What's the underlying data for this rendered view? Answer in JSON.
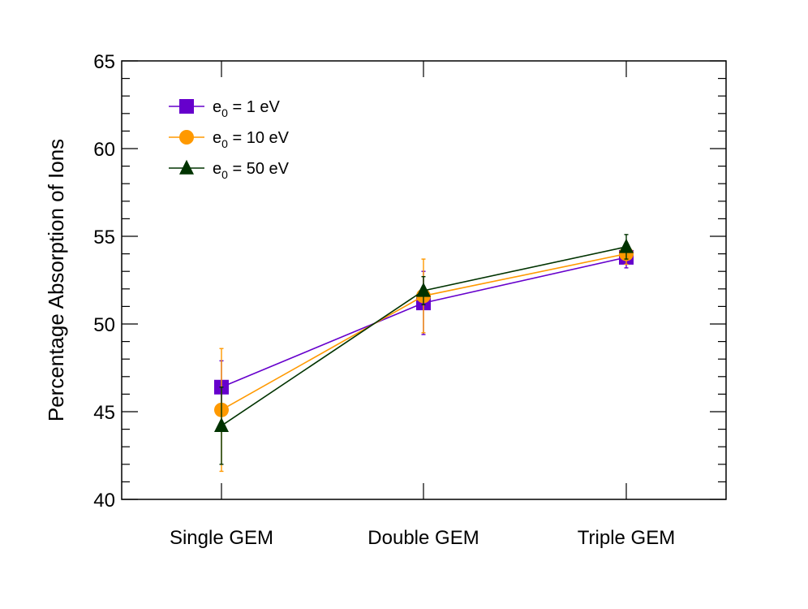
{
  "chart_data": {
    "type": "line",
    "title": "",
    "xlabel": "",
    "ylabel": "Percentage Absorption of Ions",
    "categories": [
      "Single GEM",
      "Double GEM",
      "Triple GEM"
    ],
    "ylim": [
      40,
      65
    ],
    "yticks": [
      40,
      45,
      50,
      55,
      60,
      65
    ],
    "grid": false,
    "legend_position": "top-left",
    "series": [
      {
        "name": "e0 = 1 eV",
        "legend_base": "e",
        "legend_sub": "0",
        "legend_rest": " = 1 eV",
        "color": "#6600cc",
        "marker": "square",
        "values": [
          46.4,
          51.2,
          53.8
        ],
        "errors": [
          1.5,
          1.8,
          0.6
        ]
      },
      {
        "name": "e0 = 10 eV",
        "legend_base": "e",
        "legend_sub": "0",
        "legend_rest": " = 10 eV",
        "color": "#ff9900",
        "marker": "circle",
        "values": [
          45.1,
          51.6,
          54.0
        ],
        "errors": [
          3.5,
          2.1,
          0.6
        ]
      },
      {
        "name": "e0 = 50 eV",
        "legend_base": "e",
        "legend_sub": "0",
        "legend_rest": " = 50 eV",
        "color": "#003300",
        "marker": "triangle",
        "values": [
          44.2,
          51.9,
          54.4
        ],
        "errors": [
          2.2,
          0.8,
          0.7
        ]
      }
    ]
  }
}
